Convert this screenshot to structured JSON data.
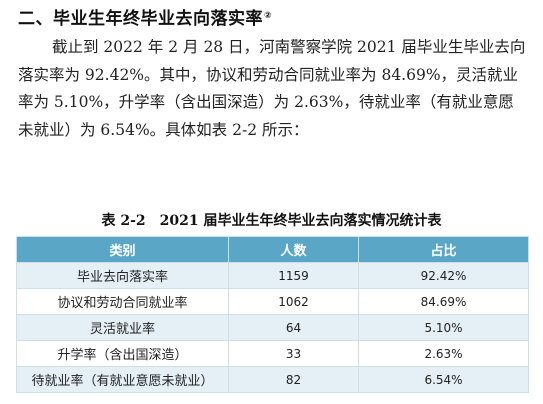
{
  "section": {
    "title": "二、毕业生年终毕业去向落实率",
    "footnote_mark": "②"
  },
  "paragraph": "截止到 2022 年 2 月 28 日，河南警察学院 2021 届毕业生毕业去向落实率为 92.42%。其中，协议和劳动合同就业率为 84.69%，灵活就业率为 5.10%，升学率（含出国深造）为 2.63%，待就业率（有就业意愿未就业）为 6.54%。具体如表 2-2 所示：",
  "table": {
    "caption": "表 2-2　2021 届毕业生年终毕业去向落实情况统计表",
    "headers": [
      "类别",
      "人数",
      "占比"
    ],
    "rows": [
      [
        "毕业去向落实率",
        "1159",
        "92.42%"
      ],
      [
        "协议和劳动合同就业率",
        "1062",
        "84.69%"
      ],
      [
        "灵活就业率",
        "64",
        "5.10%"
      ],
      [
        "升学率（含出国深造）",
        "33",
        "2.63%"
      ],
      [
        "待就业率（有就业意愿未就业）",
        "82",
        "6.54%"
      ]
    ]
  },
  "colors": {
    "header_bg": "#5aa6c6",
    "row_alt_bg": "#e4f0f5"
  }
}
